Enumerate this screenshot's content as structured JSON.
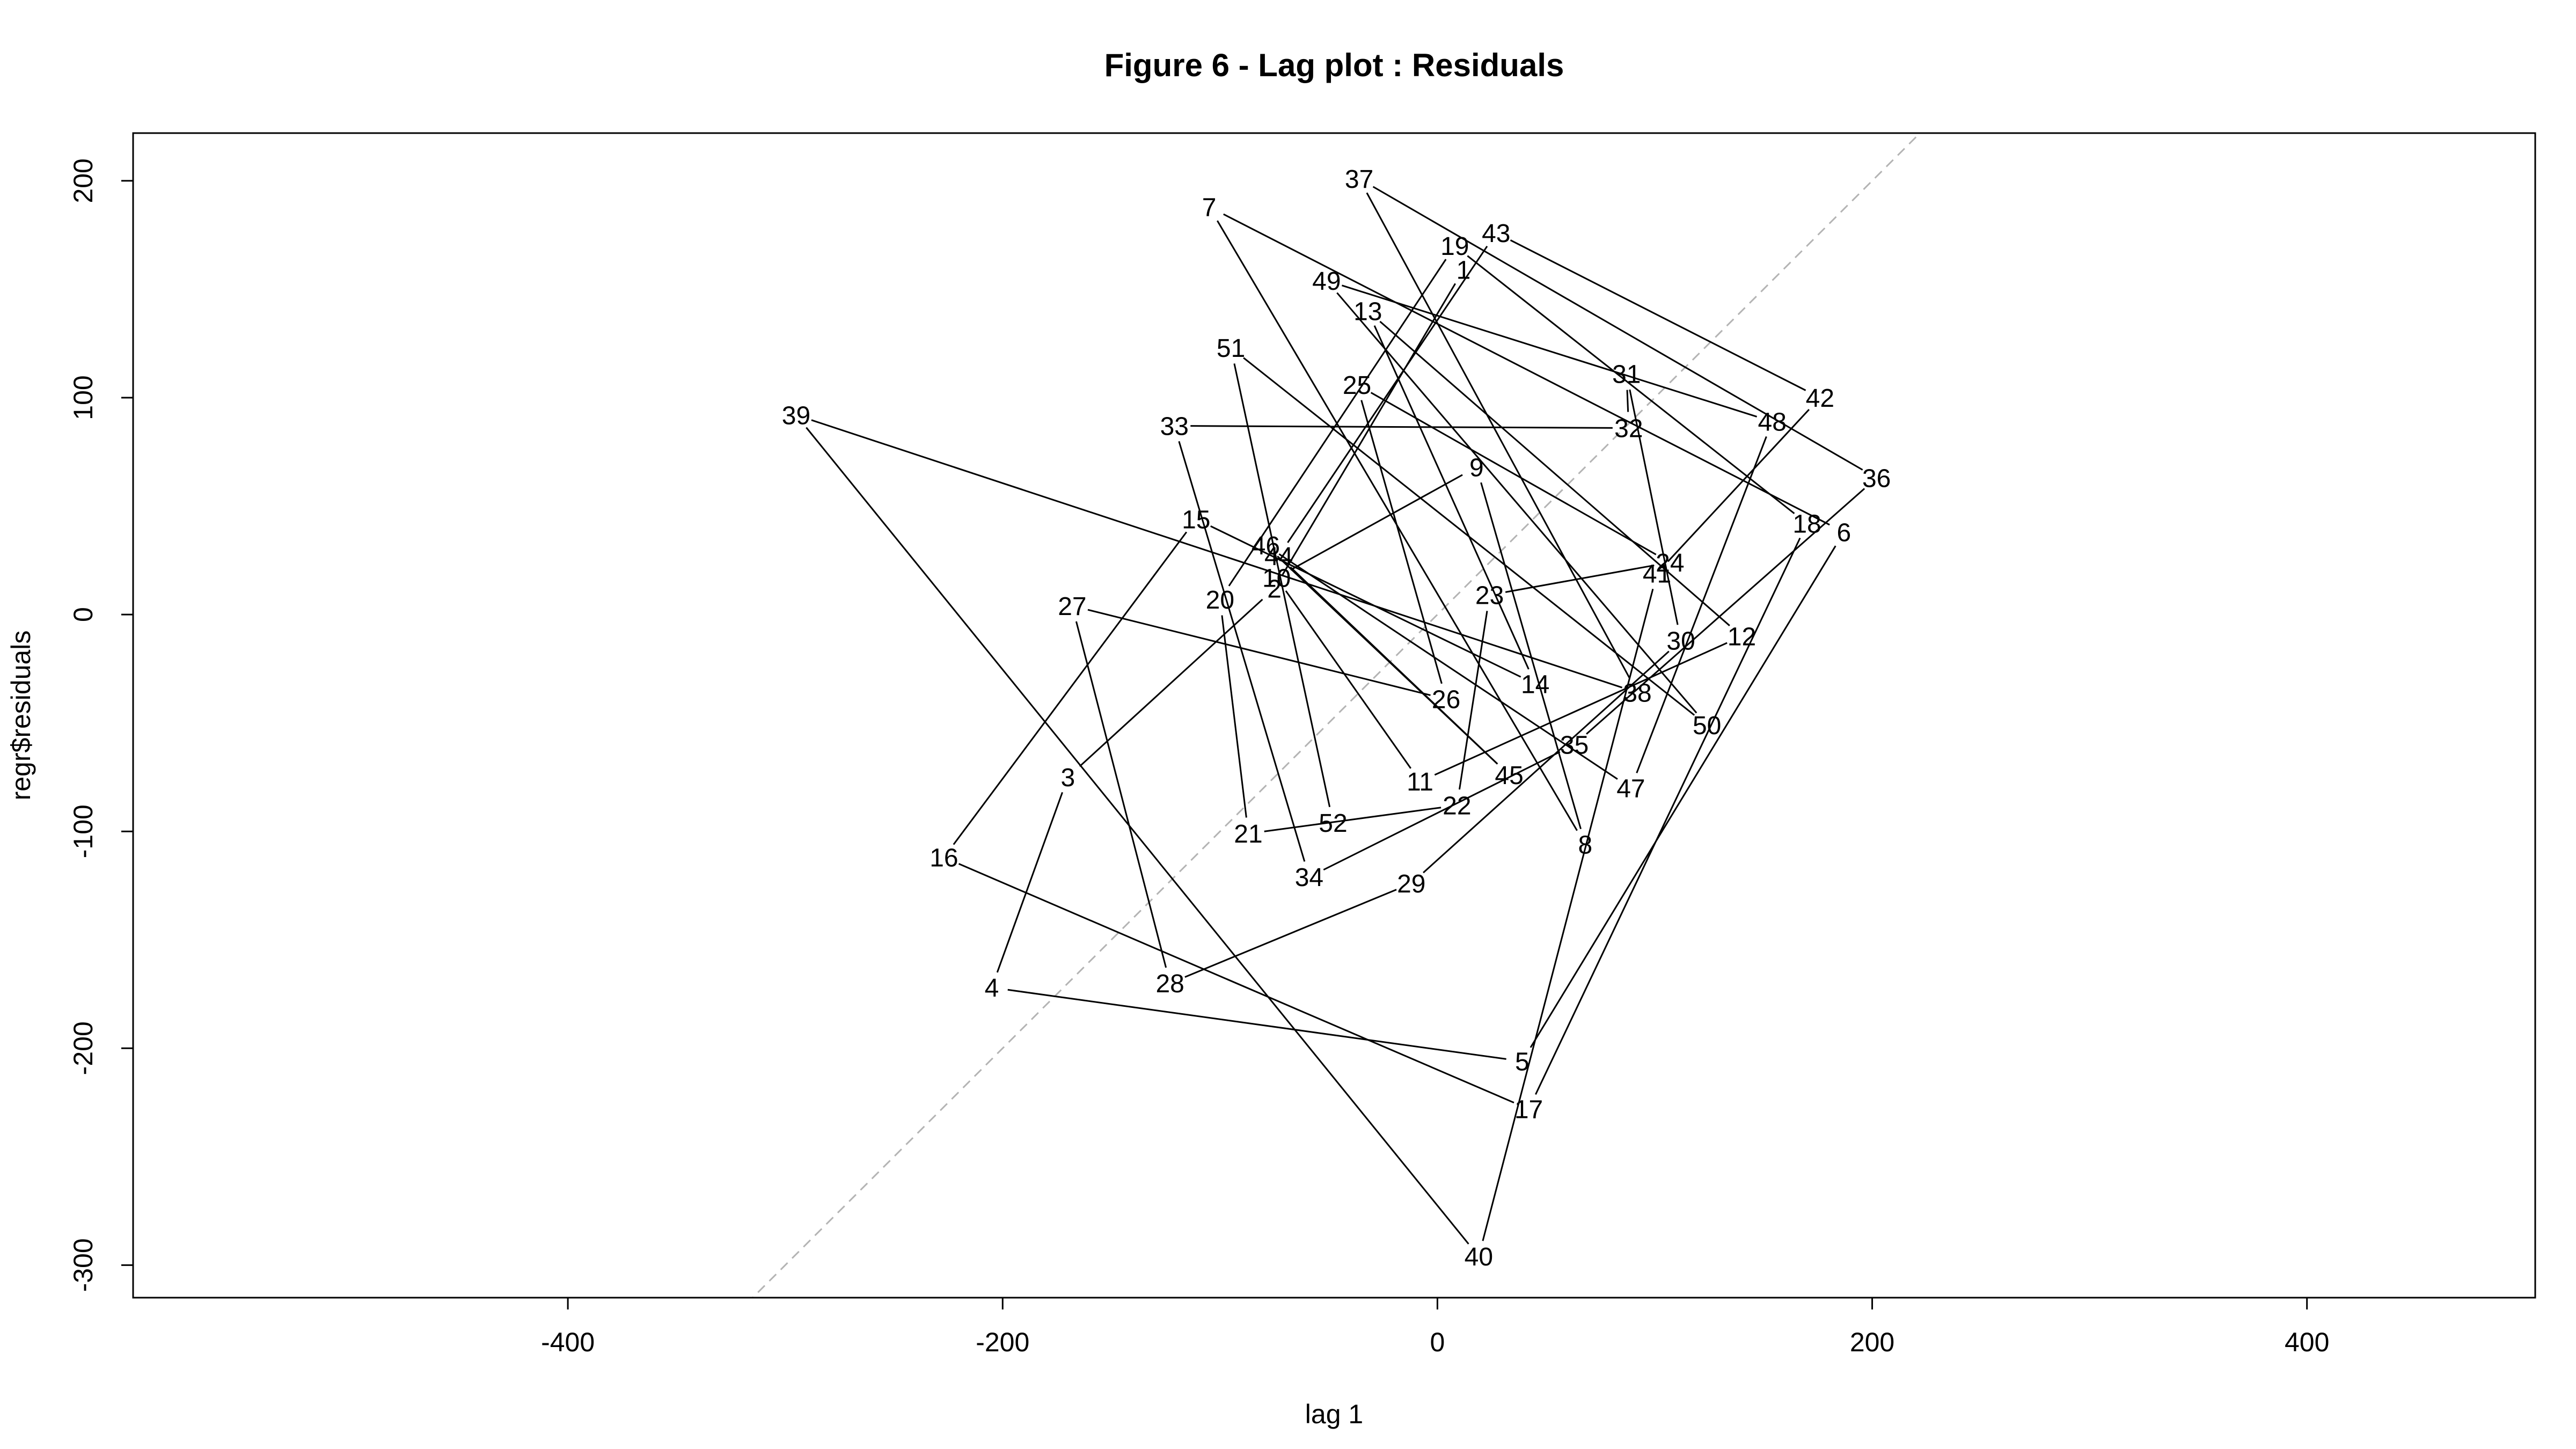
{
  "chart_data": {
    "type": "scatter",
    "title": "Figure 6 - Lag plot : Residuals",
    "xlabel": "lag 1",
    "ylabel": "regr$residuals",
    "xlim": [
      -600,
      505
    ],
    "ylim": [
      -315,
      222
    ],
    "xticks": [
      -400,
      -200,
      0,
      200,
      400
    ],
    "yticks": [
      -300,
      -200,
      -100,
      0,
      100,
      200
    ],
    "reference_line": "y = x (dashed grey)",
    "point_style": "numbered labels connected in order",
    "points": [
      {
        "label": "1",
        "x": 12,
        "y": 159
      },
      {
        "label": "2",
        "x": -75,
        "y": 12
      },
      {
        "label": "3",
        "x": -170,
        "y": -75
      },
      {
        "label": "4",
        "x": -205,
        "y": -172
      },
      {
        "label": "5",
        "x": 39,
        "y": -206
      },
      {
        "label": "6",
        "x": 187,
        "y": 38
      },
      {
        "label": "7",
        "x": -105,
        "y": 188
      },
      {
        "label": "8",
        "x": 68,
        "y": -106
      },
      {
        "label": "9",
        "x": 18,
        "y": 68
      },
      {
        "label": "10",
        "x": -74,
        "y": 17
      },
      {
        "label": "11",
        "x": -8,
        "y": -77
      },
      {
        "label": "12",
        "x": 140,
        "y": -10
      },
      {
        "label": "13",
        "x": -32,
        "y": 140
      },
      {
        "label": "14",
        "x": 45,
        "y": -32
      },
      {
        "label": "15",
        "x": -111,
        "y": 44
      },
      {
        "label": "16",
        "x": -227,
        "y": -112
      },
      {
        "label": "17",
        "x": 42,
        "y": -228
      },
      {
        "label": "18",
        "x": 170,
        "y": 42
      },
      {
        "label": "19",
        "x": 8,
        "y": 170
      },
      {
        "label": "20",
        "x": -100,
        "y": 7
      },
      {
        "label": "21",
        "x": -87,
        "y": -101
      },
      {
        "label": "22",
        "x": 9,
        "y": -88
      },
      {
        "label": "23",
        "x": 24,
        "y": 9
      },
      {
        "label": "24",
        "x": 107,
        "y": 24
      },
      {
        "label": "25",
        "x": -37,
        "y": 106
      },
      {
        "label": "26",
        "x": 4,
        "y": -39
      },
      {
        "label": "27",
        "x": -168,
        "y": 4
      },
      {
        "label": "28",
        "x": -123,
        "y": -170
      },
      {
        "label": "29",
        "x": -12,
        "y": -124
      },
      {
        "label": "30",
        "x": 112,
        "y": -12
      },
      {
        "label": "31",
        "x": 87,
        "y": 111
      },
      {
        "label": "32",
        "x": 88,
        "y": 86
      },
      {
        "label": "33",
        "x": -121,
        "y": 87
      },
      {
        "label": "34",
        "x": -59,
        "y": -121
      },
      {
        "label": "35",
        "x": 63,
        "y": -60
      },
      {
        "label": "36",
        "x": 202,
        "y": 63
      },
      {
        "label": "37",
        "x": -36,
        "y": 201
      },
      {
        "label": "38",
        "x": 92,
        "y": -36
      },
      {
        "label": "39",
        "x": -295,
        "y": 92
      },
      {
        "label": "40",
        "x": 19,
        "y": -296
      },
      {
        "label": "41",
        "x": 101,
        "y": 19
      },
      {
        "label": "42",
        "x": 176,
        "y": 100
      },
      {
        "label": "43",
        "x": 27,
        "y": 176
      },
      {
        "label": "44",
        "x": -73,
        "y": 27
      },
      {
        "label": "45",
        "x": 33,
        "y": -74
      },
      {
        "label": "46",
        "x": -79,
        "y": 32
      },
      {
        "label": "47",
        "x": 89,
        "y": -80
      },
      {
        "label": "48",
        "x": 154,
        "y": 89
      },
      {
        "label": "49",
        "x": -51,
        "y": 154
      },
      {
        "label": "50",
        "x": 124,
        "y": -51
      },
      {
        "label": "51",
        "x": -95,
        "y": 123
      },
      {
        "label": "52",
        "x": -48,
        "y": -96
      }
    ]
  }
}
